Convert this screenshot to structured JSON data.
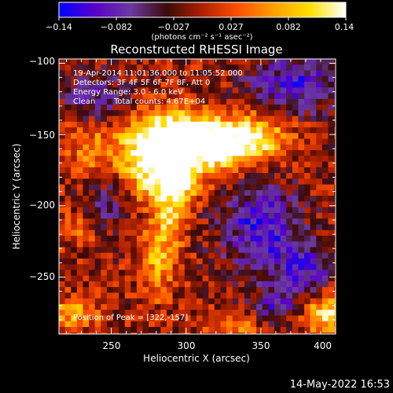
{
  "chart_data": {
    "type": "heatmap",
    "title": "Reconstructed RHESSI Image",
    "xlabel": "Heliocentric X (arcsec)",
    "ylabel": "Heliocentric Y (arcsec)",
    "xlim": [
      215,
      400
    ],
    "ylim": [
      -290,
      -97
    ],
    "x_ticks": [
      250,
      300,
      350,
      400
    ],
    "y_ticks": [
      -100,
      -150,
      -200,
      -250
    ],
    "x_tick_labels": [
      "250",
      "300",
      "350",
      "400"
    ],
    "y_tick_labels": [
      "−100",
      "−150",
      "−200",
      "−250"
    ],
    "colorbar": {
      "range": [
        -0.14,
        0.14
      ],
      "tick_labels": [
        "−0.14",
        "−0.082",
        "−0.027",
        "0.027",
        "0.082",
        "0.14"
      ],
      "unit": "(photons cm⁻² s⁻¹ asec⁻²)",
      "colors": [
        "#0000ff",
        "#5a00c8",
        "#6a3aa0",
        "#3a0a0a",
        "#b02000",
        "#ff5000",
        "#ffa000",
        "#ffe000",
        "#ffffff"
      ]
    },
    "annotations": [
      "19-Apr-2014 11:01:36.000 to 11:05:52.000",
      "Detectors: 3F 4F 5F 6F 7F 8F, Att 0",
      "Energy Range: 3.0 - 6.0 keV",
      "Clean",
      "Total counts: 4.67E+04"
    ],
    "peak_label": "Position of Peak = [322,-157]",
    "peak": {
      "x": 322,
      "y": -157
    },
    "grid": false
  },
  "footer": {
    "timestamp": "14-May-2022 16:53"
  }
}
